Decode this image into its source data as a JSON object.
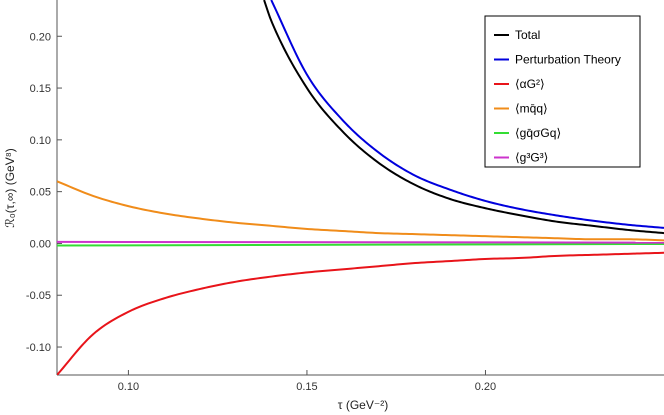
{
  "chart_data": {
    "type": "line",
    "xlabel": "τ (GeV⁻²)",
    "ylabel": "ℛ₀(τ,∞) (GeV⁸)",
    "xlim": [
      0.08,
      0.25
    ],
    "ylim": [
      -0.127,
      0.235
    ],
    "xticks": [
      0.1,
      0.15,
      0.2
    ],
    "xtick_labels": [
      "0.10",
      "0.15",
      "0.20"
    ],
    "yticks": [
      0.2,
      0.15,
      0.1,
      0.05,
      0.0,
      -0.05,
      -0.1
    ],
    "ytick_labels": [
      "0.20",
      "0.15",
      "0.10",
      "0.05",
      "0.00",
      "-0.05",
      "-0.10"
    ],
    "legend_position": "top-right",
    "grid": false,
    "series": [
      {
        "name": "Total",
        "color": "#000000",
        "x": [
          0.138,
          0.14,
          0.15,
          0.16,
          0.17,
          0.18,
          0.19,
          0.2,
          0.21,
          0.22,
          0.23,
          0.24,
          0.25
        ],
        "y": [
          0.235,
          0.215,
          0.15,
          0.108,
          0.078,
          0.057,
          0.043,
          0.034,
          0.027,
          0.021,
          0.017,
          0.013,
          0.01
        ]
      },
      {
        "name": "Perturbation Theory",
        "color": "#0000dd",
        "x": [
          0.14,
          0.15,
          0.16,
          0.17,
          0.18,
          0.19,
          0.2,
          0.21,
          0.22,
          0.23,
          0.24,
          0.25
        ],
        "y": [
          0.235,
          0.163,
          0.119,
          0.088,
          0.066,
          0.052,
          0.041,
          0.033,
          0.027,
          0.022,
          0.018,
          0.015
        ]
      },
      {
        "name": "⟨αG²⟩",
        "color": "#e8141a",
        "x": [
          0.08,
          0.09,
          0.1,
          0.11,
          0.12,
          0.13,
          0.14,
          0.15,
          0.16,
          0.17,
          0.18,
          0.19,
          0.2,
          0.21,
          0.22,
          0.23,
          0.24,
          0.25
        ],
        "y": [
          -0.127,
          -0.088,
          -0.066,
          -0.053,
          -0.044,
          -0.037,
          -0.032,
          -0.028,
          -0.025,
          -0.022,
          -0.019,
          -0.017,
          -0.015,
          -0.014,
          -0.012,
          -0.011,
          -0.01,
          -0.009
        ]
      },
      {
        "name": "⟨mq̄q⟩",
        "color": "#f08c1a",
        "x": [
          0.08,
          0.09,
          0.1,
          0.11,
          0.12,
          0.13,
          0.14,
          0.15,
          0.16,
          0.17,
          0.18,
          0.19,
          0.2,
          0.21,
          0.22,
          0.23,
          0.24,
          0.25
        ],
        "y": [
          0.06,
          0.046,
          0.036,
          0.029,
          0.024,
          0.02,
          0.017,
          0.014,
          0.012,
          0.01,
          0.009,
          0.008,
          0.007,
          0.006,
          0.005,
          0.004,
          0.004,
          0.003
        ]
      },
      {
        "name": "⟨gq̄σGq⟩",
        "color": "#33dd33",
        "x": [
          0.08,
          0.25
        ],
        "y": [
          -0.002,
          -0.0005
        ]
      },
      {
        "name": "⟨g³G³⟩",
        "color": "#cc33cc",
        "x": [
          0.08,
          0.25
        ],
        "y": [
          0.0015,
          0.0008
        ]
      }
    ]
  }
}
